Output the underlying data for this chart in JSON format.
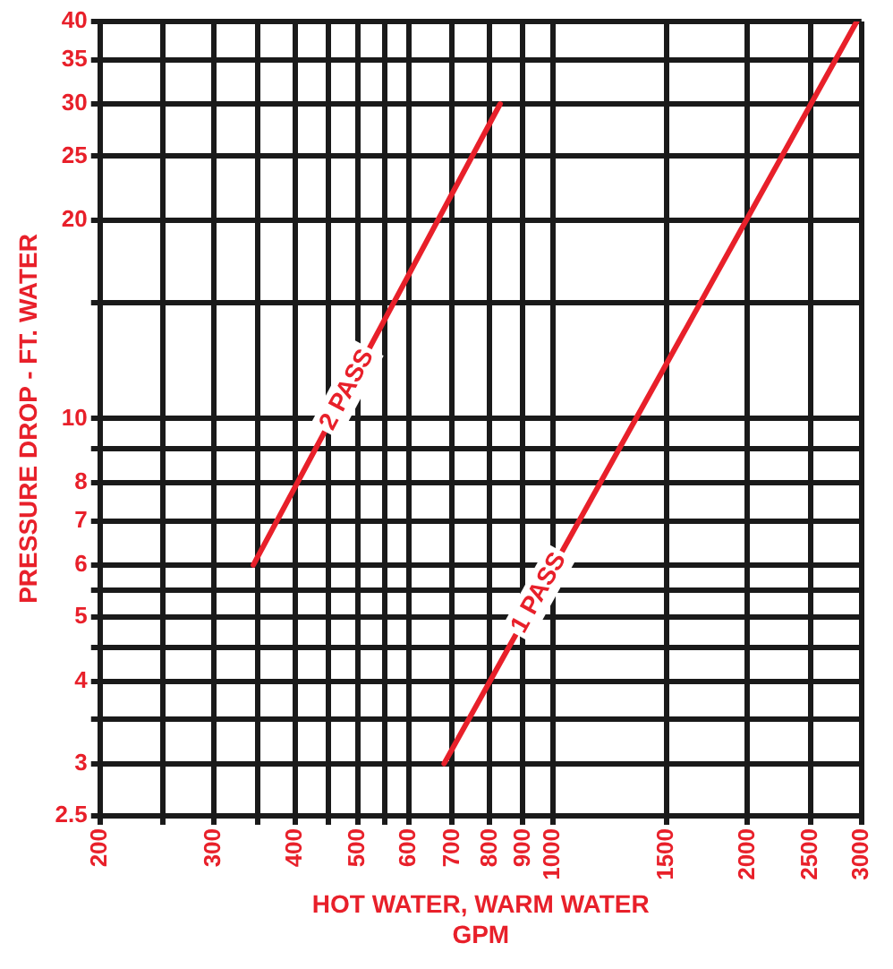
{
  "chart_data": {
    "type": "line",
    "xlabel": "HOT WATER, WARM WATER\nGPM",
    "ylabel": "PRESSURE DROP - FT. WATER",
    "log": "xy",
    "grid": true,
    "legend": false,
    "marker": "none",
    "line_style": "solid",
    "xlim": [
      200,
      3000
    ],
    "ylim": [
      2.5,
      40
    ],
    "xticks": [
      200,
      {
        "value": 250,
        "label": null
      },
      300,
      {
        "value": 350,
        "label": null
      },
      400,
      {
        "value": 450,
        "label": null
      },
      500,
      {
        "value": 550,
        "label": null
      },
      600,
      700,
      800,
      900,
      1000,
      1500,
      2000,
      2500,
      3000
    ],
    "yticks": [
      2.5,
      3,
      {
        "value": 3.5,
        "label": null
      },
      4,
      {
        "value": 4.5,
        "label": null
      },
      5,
      {
        "value": 5.5,
        "label": null
      },
      6,
      7,
      8,
      {
        "value": 9,
        "label": null
      },
      10,
      {
        "value": 15,
        "label": null
      },
      20,
      25,
      30,
      35,
      40
    ],
    "series": [
      {
        "name": "2 PASS",
        "color": "#e8202a",
        "x": [
          345,
          830
        ],
        "values": [
          6,
          30
        ]
      },
      {
        "name": "1 PASS",
        "color": "#e8202a",
        "x": [
          680,
          2950
        ],
        "values": [
          3,
          40
        ]
      }
    ]
  }
}
